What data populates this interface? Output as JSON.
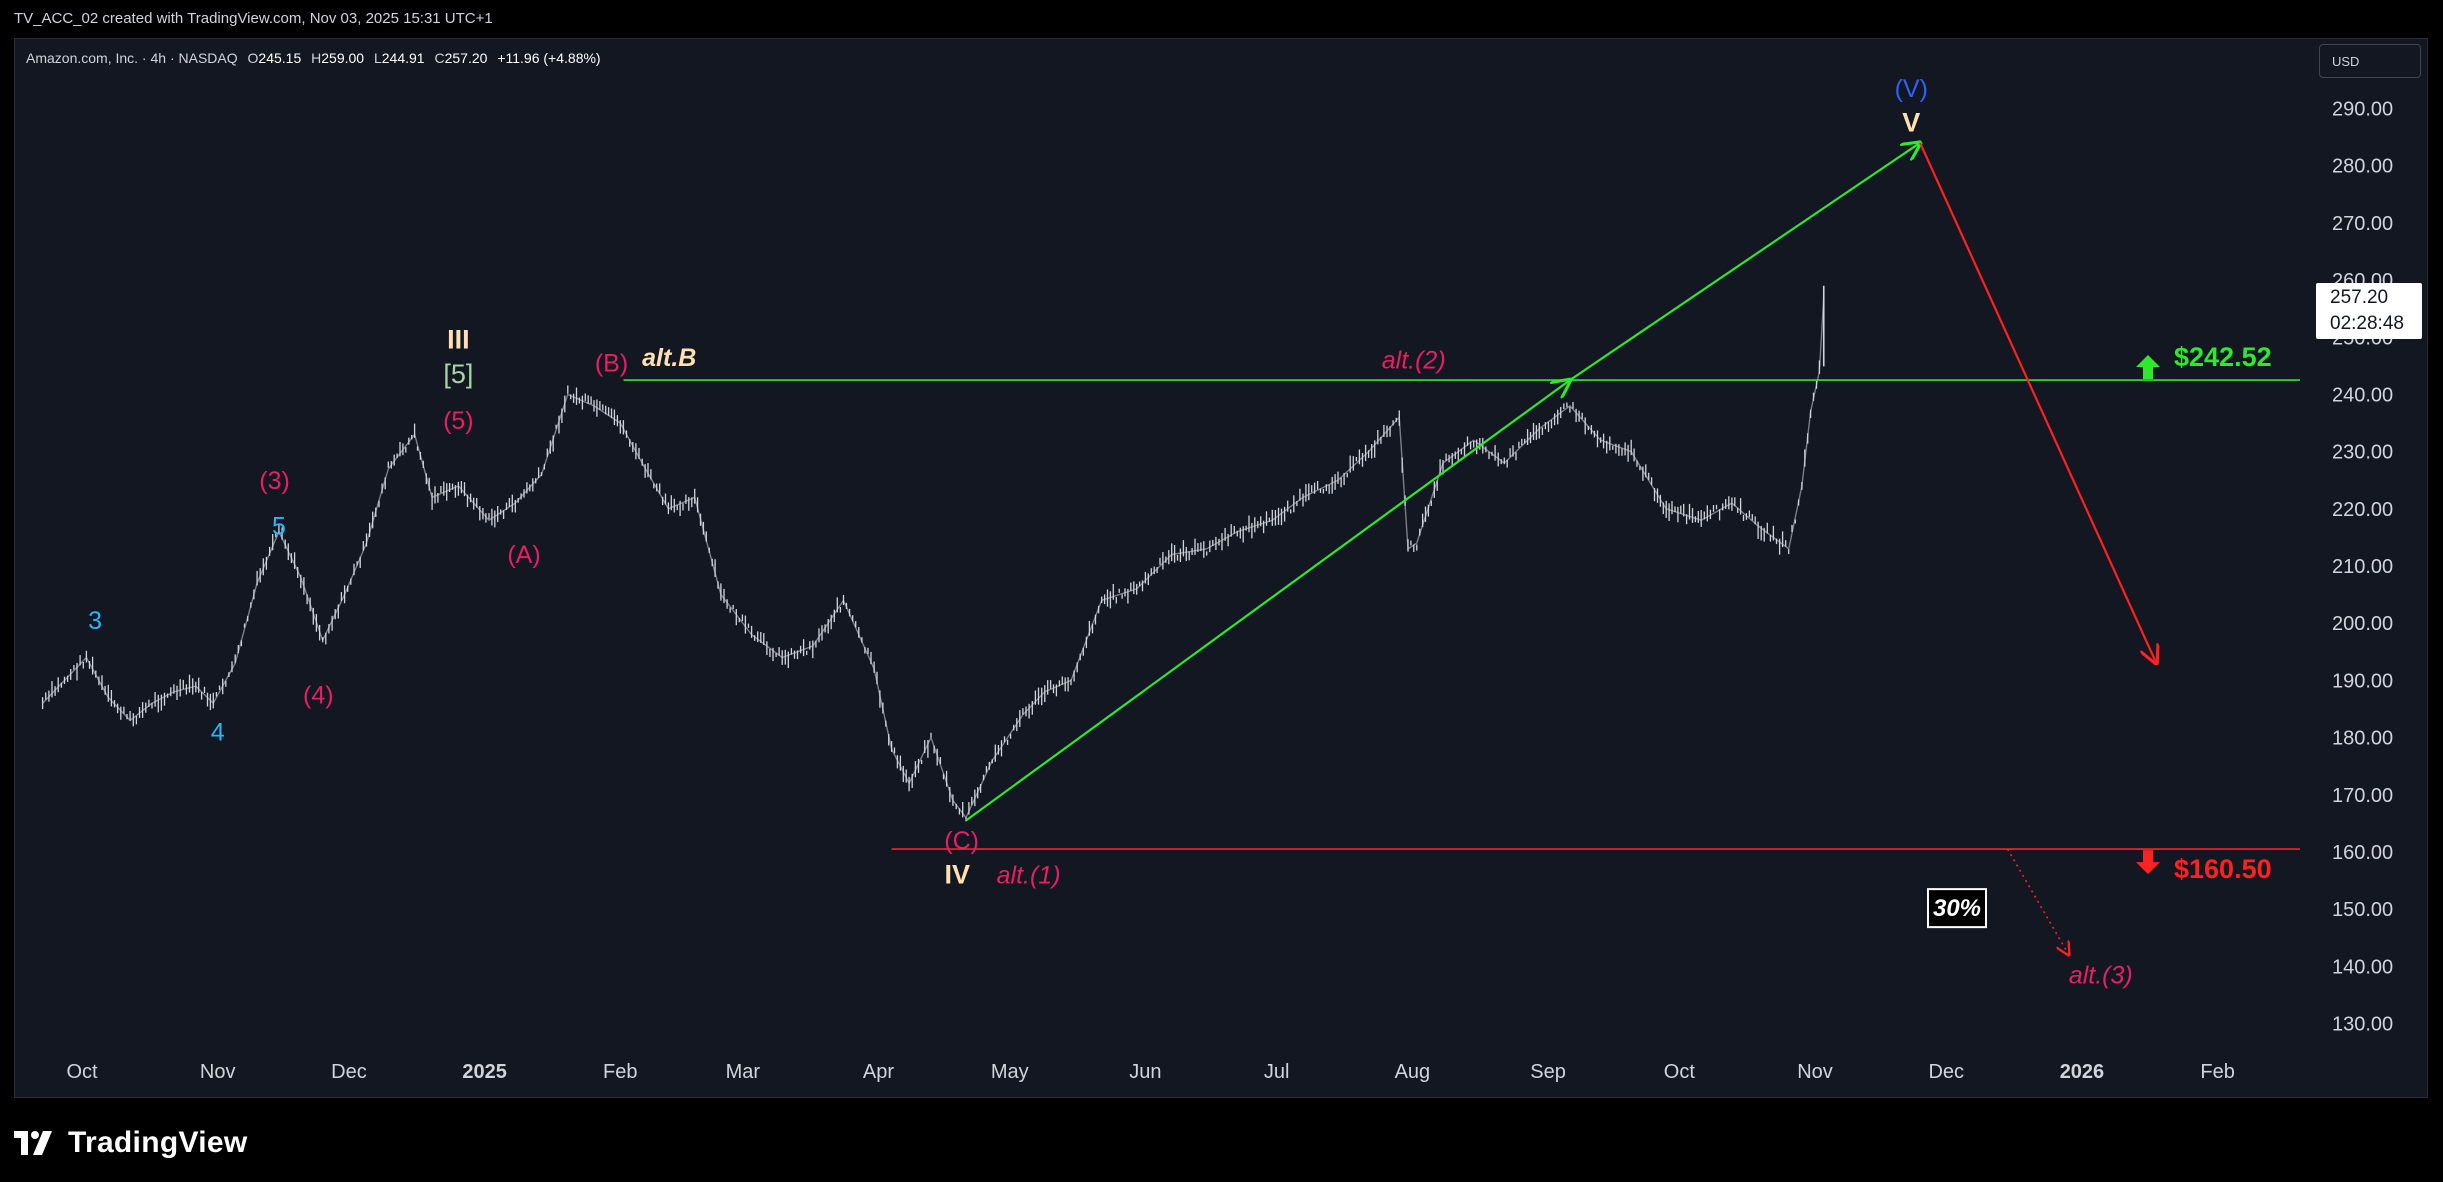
{
  "header": {
    "title": "TV_ACC_02 created with TradingView.com, Nov 03, 2025 15:31 UTC+1"
  },
  "symbol": {
    "name": "Amazon.com, Inc. · 4h · NASDAQ",
    "open_label": "O",
    "open": "245.15",
    "high_label": "H",
    "high": "259.00",
    "low_label": "L",
    "low": "244.91",
    "close_label": "C",
    "close": "257.20",
    "change": "+11.96 (+4.88%)"
  },
  "currency": "USD",
  "last_price": {
    "price": "257.20",
    "countdown": "02:28:48"
  },
  "footer": {
    "brand": "TradingView"
  },
  "colors": {
    "background": "#131722",
    "candle": "#d1d4dc",
    "resistance_line": "#2ee82e",
    "support_line": "#ff2020",
    "wave_pink": "#e91e63",
    "wave_cyan": "#29b6f6",
    "wave_cream": "#ffe0b2",
    "wave_blue": "#2962ff",
    "wave_green": "#a5d6a7"
  },
  "chart_data": {
    "type": "line",
    "x_ticks": [
      "Oct",
      "Nov",
      "Dec",
      "2025",
      "Feb",
      "Mar",
      "Apr",
      "May",
      "Jun",
      "Jul",
      "Aug",
      "Sep",
      "Oct",
      "Nov",
      "Dec",
      "2026",
      "Feb"
    ],
    "y_ticks": [
      "290.00",
      "280.00",
      "270.00",
      "260.00",
      "250.00",
      "240.00",
      "230.00",
      "220.00",
      "210.00",
      "200.00",
      "190.00",
      "180.00",
      "170.00",
      "160.00",
      "150.00",
      "140.00",
      "130.00"
    ],
    "ylim": [
      127,
      296
    ],
    "series": [
      {
        "x": [
          "2024-09-22",
          "2024-09-27",
          "2024-10-02",
          "2024-10-07",
          "2024-10-12",
          "2024-10-17",
          "2024-10-22",
          "2024-10-27",
          "2024-10-31",
          "2024-11-05",
          "2024-11-10",
          "2024-11-15",
          "2024-11-20",
          "2024-11-25",
          "2024-11-30",
          "2024-12-05",
          "2024-12-10",
          "2024-12-16",
          "2024-12-20",
          "2024-12-26",
          "2025-01-02",
          "2025-01-08",
          "2025-01-14",
          "2025-01-20",
          "2025-01-26",
          "2025-02-01",
          "2025-02-06",
          "2025-02-12",
          "2025-02-18",
          "2025-02-24",
          "2025-03-03",
          "2025-03-10",
          "2025-03-17",
          "2025-03-24",
          "2025-03-31",
          "2025-04-04",
          "2025-04-08",
          "2025-04-13",
          "2025-04-18",
          "2025-04-21",
          "2025-04-27",
          "2025-05-04",
          "2025-05-09",
          "2025-05-15",
          "2025-05-22",
          "2025-05-30",
          "2025-06-07",
          "2025-06-15",
          "2025-06-22",
          "2025-06-30",
          "2025-07-07",
          "2025-07-15",
          "2025-07-22",
          "2025-07-29",
          "2025-07-31",
          "2025-08-02",
          "2025-08-08",
          "2025-08-15",
          "2025-08-22",
          "2025-08-30",
          "2025-09-06",
          "2025-09-13",
          "2025-09-20",
          "2025-09-28",
          "2025-10-06",
          "2025-10-13",
          "2025-10-19",
          "2025-10-26",
          "2025-10-29",
          "2025-10-31",
          "2025-11-02",
          "2025-11-03"
        ],
        "y": [
          186,
          190,
          194,
          187,
          183,
          186,
          188,
          189,
          186,
          193,
          207,
          216,
          208,
          197,
          205,
          214,
          227,
          233,
          222,
          224,
          218,
          221,
          226,
          240,
          238,
          235,
          228,
          220,
          222,
          205,
          198,
          194,
          196,
          204,
          192,
          178,
          172,
          180,
          169,
          166,
          176,
          184,
          188,
          190,
          204,
          206,
          212,
          213,
          216,
          218,
          222,
          225,
          230,
          236,
          213,
          214,
          228,
          232,
          228,
          234,
          238,
          232,
          230,
          220,
          218,
          221,
          217,
          213,
          224,
          237,
          244,
          257
        ]
      }
    ],
    "horizontal_levels": [
      {
        "label": "$242.52",
        "value": 242.52,
        "direction": "up",
        "color": "#2ee82e"
      },
      {
        "label": "$160.50",
        "value": 160.5,
        "direction": "down",
        "color": "#ff2020"
      }
    ],
    "projection_arrows": [
      {
        "from": [
          "2025-04-21",
          165.5
        ],
        "to": [
          "2025-09-06",
          242.5
        ],
        "color": "#2ee82e"
      },
      {
        "from": [
          "2025-09-06",
          242.5
        ],
        "to": [
          "2025-11-25",
          284
        ],
        "color": "#2ee82e"
      },
      {
        "from": [
          "2025-11-25",
          284
        ],
        "to": [
          "2026-01-18",
          193
        ],
        "color": "#ff2020"
      }
    ],
    "dotted_projection": {
      "from": [
        "2025-12-15",
        160.5
      ],
      "to": [
        "2025-12-29",
        142
      ],
      "label": "30%"
    },
    "wave_labels": [
      {
        "text": "3",
        "x": "2024-10-04",
        "y": 199,
        "color": "#29b6f6"
      },
      {
        "text": "4",
        "x": "2024-11-01",
        "y": 179.5,
        "color": "#29b6f6"
      },
      {
        "text": "(3)",
        "x": "2024-11-14",
        "y": 223.5,
        "color": "#e91e63"
      },
      {
        "text": "5",
        "x": "2024-11-15",
        "y": 215.5,
        "color": "#29b6f6"
      },
      {
        "text": "(4)",
        "x": "2024-11-24",
        "y": 186,
        "color": "#e91e63"
      },
      {
        "text": "III",
        "x": "2024-12-26",
        "y": 248,
        "color": "#ffe0b2"
      },
      {
        "text": "[5]",
        "x": "2024-12-26",
        "y": 242,
        "color": "#a5d6a7"
      },
      {
        "text": "(5)",
        "x": "2024-12-26",
        "y": 234,
        "color": "#e91e63"
      },
      {
        "text": "(A)",
        "x": "2025-01-10",
        "y": 210.5,
        "color": "#e91e63"
      },
      {
        "text": "(B)",
        "x": "2025-01-30",
        "y": 244,
        "color": "#e91e63"
      },
      {
        "text": "alt.B",
        "x": "2025-02-06",
        "y": 245,
        "color": "#ffe0b2"
      },
      {
        "text": "(C)",
        "x": "2025-04-20",
        "y": 160.5,
        "color": "#e91e63"
      },
      {
        "text": "IV",
        "x": "2025-04-19",
        "y": 154.5,
        "color": "#ffe0b2"
      },
      {
        "text": "alt.(1)",
        "x": "2025-04-28",
        "y": 154.5,
        "color": "#e91e63"
      },
      {
        "text": "alt.(2)",
        "x": "2025-07-25",
        "y": 244.5,
        "color": "#e91e63"
      },
      {
        "text": "(V)",
        "x": "2025-11-23",
        "y": 292,
        "color": "#2962ff"
      },
      {
        "text": "V",
        "x": "2025-11-23",
        "y": 286,
        "color": "#ffe0b2"
      },
      {
        "text": "alt.(3)",
        "x": "2025-12-29",
        "y": 137,
        "color": "#e91e63"
      }
    ]
  }
}
